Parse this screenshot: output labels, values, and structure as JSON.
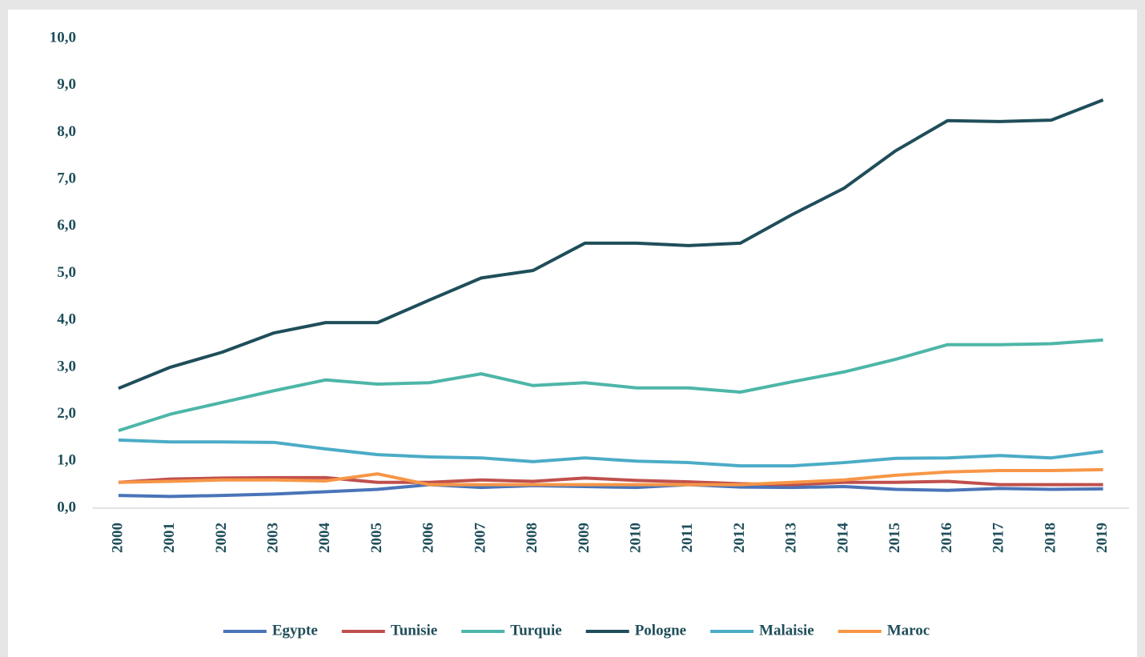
{
  "chart_data": {
    "type": "line",
    "categories": [
      "2000",
      "2001",
      "2002",
      "2003",
      "2004",
      "2005",
      "2006",
      "2007",
      "2008",
      "2009",
      "2010",
      "2011",
      "2012",
      "2013",
      "2014",
      "2015",
      "2016",
      "2017",
      "2018",
      "2019"
    ],
    "series": [
      {
        "name": "Egypte",
        "color": "#4a74b8",
        "values": [
          0.27,
          0.25,
          0.27,
          0.3,
          0.35,
          0.4,
          0.5,
          0.44,
          0.48,
          0.46,
          0.44,
          0.5,
          0.45,
          0.44,
          0.46,
          0.4,
          0.38,
          0.42,
          0.4,
          0.41
        ]
      },
      {
        "name": "Tunisie",
        "color": "#c0504d",
        "values": [
          0.55,
          0.62,
          0.64,
          0.65,
          0.65,
          0.55,
          0.55,
          0.6,
          0.57,
          0.64,
          0.59,
          0.56,
          0.52,
          0.5,
          0.55,
          0.55,
          0.57,
          0.5,
          0.5,
          0.5
        ]
      },
      {
        "name": "Turquie",
        "color": "#4db6a8",
        "values": [
          1.65,
          2.0,
          2.25,
          2.5,
          2.73,
          2.64,
          2.67,
          2.86,
          2.61,
          2.67,
          2.56,
          2.56,
          2.47,
          2.69,
          2.9,
          3.17,
          3.48,
          3.48,
          3.5,
          3.58
        ]
      },
      {
        "name": "Pologne",
        "color": "#1f4e5a",
        "values": [
          2.55,
          3.0,
          3.32,
          3.73,
          3.95,
          3.95,
          4.43,
          4.9,
          5.06,
          5.64,
          5.64,
          5.59,
          5.64,
          6.25,
          6.81,
          7.61,
          8.25,
          8.23,
          8.26,
          8.69
        ]
      },
      {
        "name": "Malaisie",
        "color": "#4bacc6",
        "values": [
          1.45,
          1.41,
          1.41,
          1.4,
          1.26,
          1.14,
          1.09,
          1.07,
          0.99,
          1.07,
          1.0,
          0.97,
          0.9,
          0.9,
          0.97,
          1.06,
          1.07,
          1.12,
          1.07,
          1.21
        ]
      },
      {
        "name": "Maroc",
        "color": "#f79646",
        "values": [
          0.55,
          0.57,
          0.6,
          0.6,
          0.58,
          0.73,
          0.5,
          0.5,
          0.5,
          0.5,
          0.5,
          0.5,
          0.5,
          0.55,
          0.6,
          0.7,
          0.77,
          0.8,
          0.8,
          0.82
        ]
      }
    ],
    "ylim": [
      0,
      10
    ],
    "yticks": [
      {
        "value": 0,
        "label": "0,0"
      },
      {
        "value": 1,
        "label": "1,0"
      },
      {
        "value": 2,
        "label": "2,0"
      },
      {
        "value": 3,
        "label": "3,0"
      },
      {
        "value": 4,
        "label": "4,0"
      },
      {
        "value": 5,
        "label": "5,0"
      },
      {
        "value": 6,
        "label": "6,0"
      },
      {
        "value": 7,
        "label": "7,0"
      },
      {
        "value": 8,
        "label": "8,0"
      },
      {
        "value": 9,
        "label": "9,0"
      },
      {
        "value": 10,
        "label": "10,0"
      }
    ],
    "grid": false,
    "legend": "bottom"
  }
}
